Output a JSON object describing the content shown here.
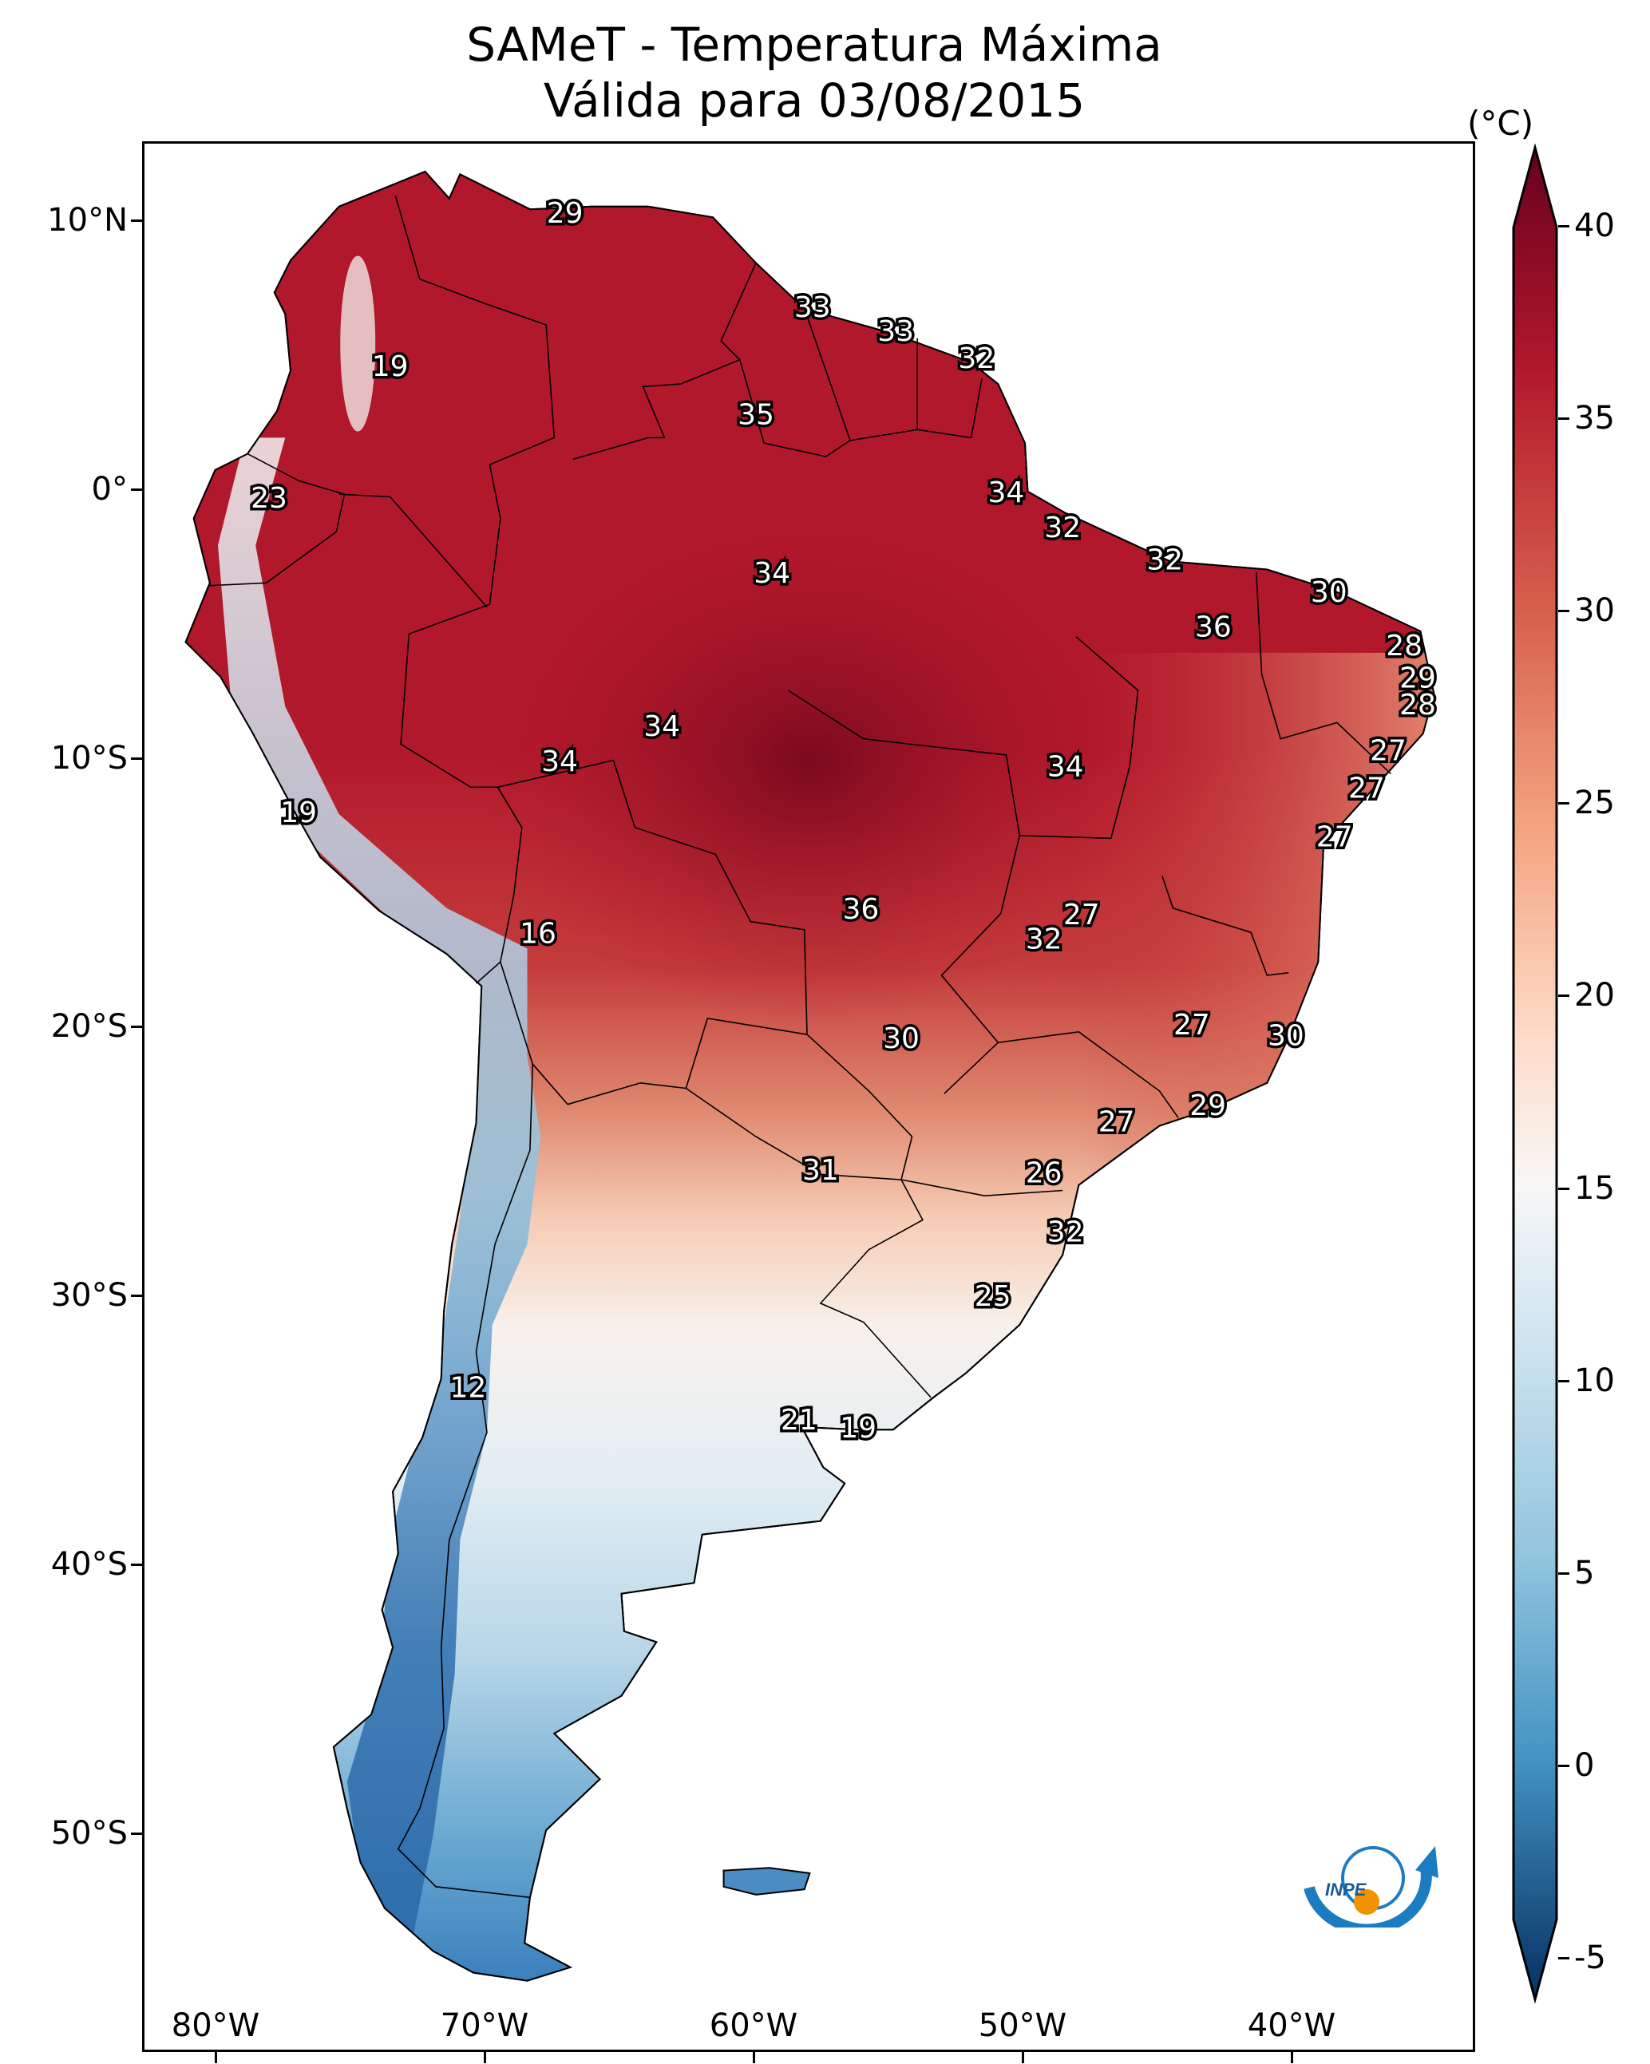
{
  "title": {
    "line1": "SAMeT - Temperatura Máxima",
    "line2": "Válida para 03/08/2015"
  },
  "colorbar": {
    "unit": "(°C)",
    "ticks": [
      "40",
      "35",
      "30",
      "25",
      "20",
      "15",
      "10",
      "5",
      "0",
      "-5"
    ],
    "range": [
      -5,
      40
    ],
    "colormap": "RdBu_r",
    "colors": {
      "max": "#67001f",
      "high": "#b2182b",
      "warm": "#d6604d",
      "mild": "#f4a582",
      "neutral": "#f7f7f7",
      "cool": "#92c5de",
      "cold": "#4393c3",
      "min": "#053061"
    }
  },
  "axes": {
    "lat_labels": [
      "10°N",
      "0°",
      "10°S",
      "20°S",
      "30°S",
      "40°S",
      "50°S"
    ],
    "lon_labels": [
      "80°W",
      "70°W",
      "60°W",
      "50°W",
      "40°W"
    ]
  },
  "station_labels": [
    {
      "value": "29",
      "lon": -67.1,
      "lat": 10.3
    },
    {
      "value": "33",
      "lon": -57.9,
      "lat": 6.8
    },
    {
      "value": "33",
      "lon": -54.8,
      "lat": 5.9
    },
    {
      "value": "32",
      "lon": -51.8,
      "lat": 4.9
    },
    {
      "value": "19",
      "lon": -73.6,
      "lat": 4.6
    },
    {
      "value": "35",
      "lon": -60.0,
      "lat": 2.8
    },
    {
      "value": "23",
      "lon": -78.1,
      "lat": -0.3
    },
    {
      "value": "34",
      "lon": -50.7,
      "lat": -0.1
    },
    {
      "value": "32",
      "lon": -48.6,
      "lat": -1.4
    },
    {
      "value": "32",
      "lon": -44.8,
      "lat": -2.6
    },
    {
      "value": "34",
      "lon": -59.4,
      "lat": -3.1
    },
    {
      "value": "30",
      "lon": -38.7,
      "lat": -3.8
    },
    {
      "value": "36",
      "lon": -43.0,
      "lat": -5.1
    },
    {
      "value": "28",
      "lon": -35.9,
      "lat": -5.8
    },
    {
      "value": "29",
      "lon": -35.4,
      "lat": -7.0
    },
    {
      "value": "28",
      "lon": -35.4,
      "lat": -8.0
    },
    {
      "value": "34",
      "lon": -63.5,
      "lat": -8.8
    },
    {
      "value": "27",
      "lon": -36.5,
      "lat": -9.7
    },
    {
      "value": "34",
      "lon": -67.3,
      "lat": -10.1
    },
    {
      "value": "34",
      "lon": -48.5,
      "lat": -10.3
    },
    {
      "value": "27",
      "lon": -37.3,
      "lat": -11.1
    },
    {
      "value": "19",
      "lon": -77.0,
      "lat": -12.0
    },
    {
      "value": "27",
      "lon": -38.5,
      "lat": -12.9
    },
    {
      "value": "36",
      "lon": -56.1,
      "lat": -15.6
    },
    {
      "value": "27",
      "lon": -47.9,
      "lat": -15.8
    },
    {
      "value": "16",
      "lon": -68.1,
      "lat": -16.5
    },
    {
      "value": "32",
      "lon": -49.3,
      "lat": -16.7
    },
    {
      "value": "27",
      "lon": -43.8,
      "lat": -19.9
    },
    {
      "value": "30",
      "lon": -54.6,
      "lat": -20.4
    },
    {
      "value": "30",
      "lon": -40.3,
      "lat": -20.3
    },
    {
      "value": "29",
      "lon": -43.2,
      "lat": -22.9
    },
    {
      "value": "27",
      "lon": -46.6,
      "lat": -23.5
    },
    {
      "value": "31",
      "lon": -57.6,
      "lat": -25.3
    },
    {
      "value": "26",
      "lon": -49.3,
      "lat": -25.4
    },
    {
      "value": "32",
      "lon": -48.5,
      "lat": -27.6
    },
    {
      "value": "25",
      "lon": -51.2,
      "lat": -30.0
    },
    {
      "value": "12",
      "lon": -70.7,
      "lat": -33.4
    },
    {
      "value": "21",
      "lon": -58.4,
      "lat": -34.6
    },
    {
      "value": "19",
      "lon": -56.2,
      "lat": -34.9
    }
  ],
  "logo": {
    "text": "INPE",
    "colors": {
      "arc": "#1b7cc1",
      "dot": "#f39200"
    }
  }
}
